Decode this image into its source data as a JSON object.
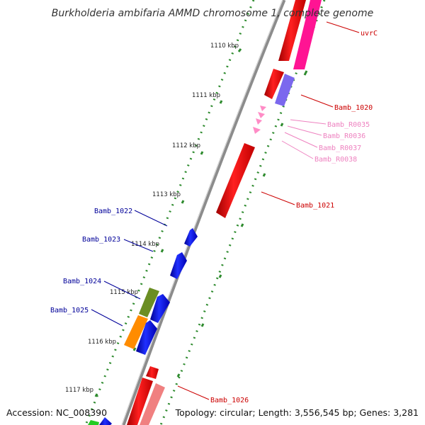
{
  "title": "Burkholderia ambifaria AMMD chromosome 1, complete genome",
  "accession": "Accession: NC_008390",
  "topology": "Topology: circular; Length: 3,556,545 bp; Genes: 3,281",
  "ticks": [
    "1110 kbp",
    "1111 kbp",
    "1112 kbp",
    "1113 kbp",
    "1114 kbp",
    "1115 kbp",
    "1116 kbp",
    "1117 kbp"
  ],
  "forward_labels": [
    "uvrC",
    "Bamb_1020",
    "Bamb_1021",
    "Bamb_1026"
  ],
  "rna_labels": [
    "Bamb_R0035",
    "Bamb_R0036",
    "Bamb_R0037",
    "Bamb_R0038"
  ],
  "reverse_labels": [
    "Bamb_1022",
    "Bamb_1023",
    "Bamb_1024",
    "Bamb_1025"
  ],
  "colors": {
    "backbone": "#8c8c8c",
    "gc_dots": "#2e8b2e",
    "forward_cds": "#ff0000",
    "reverse_cds": "#0000ee",
    "rna": "#ff8cc6",
    "magenta_cds": "#ff1493",
    "purple_cds": "#7b68ee",
    "olive_cds": "#6b8e23",
    "orange_cds": "#ff8c00",
    "salmon_cds": "#f08080",
    "green_cds": "#22cc22",
    "forward_label": "#cc0000",
    "reverse_label": "#000099",
    "rna_label": "#ee82c0"
  }
}
